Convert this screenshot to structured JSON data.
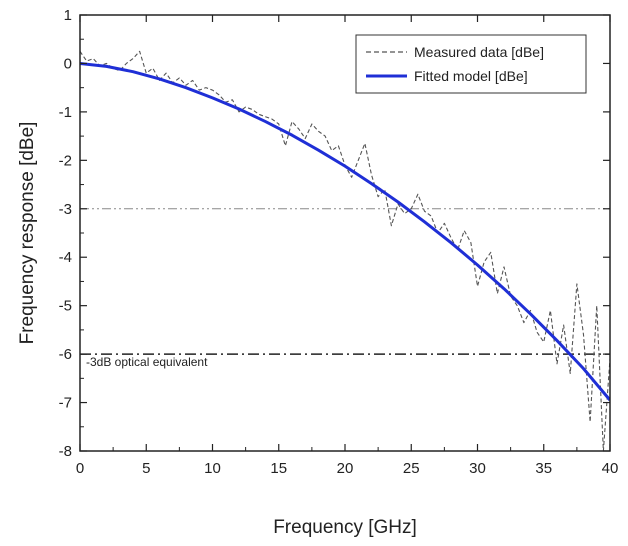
{
  "chart_data": {
    "type": "line",
    "title": "",
    "xlabel": "Frequency [GHz]",
    "ylabel": "Frequency response [dBe]",
    "xlim": [
      0,
      40
    ],
    "ylim": [
      -8,
      1
    ],
    "x_ticks": [
      0,
      5,
      10,
      15,
      20,
      25,
      30,
      35,
      40
    ],
    "y_ticks": [
      1,
      0,
      -1,
      -2,
      -3,
      -4,
      -5,
      -6,
      -7,
      -8
    ],
    "grid": false,
    "legend_position": "top-right",
    "series": [
      {
        "name": "Measured data [dBe]",
        "style": "dashed",
        "color": "#555555",
        "x": [
          0,
          0.5,
          1,
          1.5,
          2,
          2.5,
          3,
          3.5,
          4,
          4.5,
          5,
          5.5,
          6,
          6.5,
          7,
          7.5,
          8,
          8.5,
          9,
          9.5,
          10,
          10.5,
          11,
          11.5,
          12,
          12.5,
          13,
          13.5,
          14,
          14.5,
          15,
          15.5,
          16,
          16.5,
          17,
          17.5,
          18,
          18.5,
          19,
          19.5,
          20,
          20.5,
          21,
          21.5,
          22,
          22.5,
          23,
          23.5,
          24,
          24.5,
          25,
          25.5,
          26,
          26.5,
          27,
          27.5,
          28,
          28.5,
          29,
          29.5,
          30,
          30.5,
          31,
          31.5,
          32,
          32.5,
          33,
          33.5,
          34,
          34.5,
          35,
          35.5,
          36,
          36.5,
          37,
          37.5,
          38,
          38.5,
          39,
          39.5,
          40
        ],
        "y": [
          0.25,
          0.05,
          0.1,
          -0.05,
          0.0,
          -0.1,
          -0.15,
          0.0,
          0.1,
          0.25,
          -0.2,
          -0.1,
          -0.35,
          -0.2,
          -0.4,
          -0.3,
          -0.45,
          -0.35,
          -0.55,
          -0.5,
          -0.55,
          -0.65,
          -0.8,
          -0.75,
          -1.0,
          -0.9,
          -0.95,
          -1.05,
          -1.1,
          -1.15,
          -1.25,
          -1.7,
          -1.2,
          -1.35,
          -1.55,
          -1.25,
          -1.4,
          -1.5,
          -1.8,
          -1.7,
          -2.1,
          -2.35,
          -2.0,
          -1.65,
          -2.3,
          -2.75,
          -2.6,
          -3.35,
          -2.9,
          -3.1,
          -3.0,
          -2.7,
          -3.05,
          -3.15,
          -3.5,
          -3.3,
          -3.6,
          -3.85,
          -3.45,
          -3.7,
          -4.6,
          -4.1,
          -3.9,
          -4.75,
          -4.2,
          -4.8,
          -5.0,
          -5.35,
          -5.1,
          -5.55,
          -5.75,
          -5.1,
          -6.2,
          -5.4,
          -6.4,
          -4.55,
          -5.6,
          -7.4,
          -5.0,
          -8.0,
          -6.1
        ]
      },
      {
        "name": "Fitted model [dBe]",
        "style": "solid",
        "color": "#1f2fd6",
        "x": [
          0,
          2,
          4,
          6,
          8,
          10,
          12,
          14,
          16,
          18,
          20,
          22,
          24,
          26,
          28,
          30,
          32,
          34,
          36,
          38,
          40
        ],
        "y": [
          0.0,
          -0.06,
          -0.17,
          -0.32,
          -0.5,
          -0.71,
          -0.94,
          -1.2,
          -1.48,
          -1.79,
          -2.12,
          -2.48,
          -2.86,
          -3.27,
          -3.7,
          -4.16,
          -4.65,
          -5.17,
          -5.72,
          -6.3,
          -6.95
        ]
      }
    ],
    "reference_lines": [
      {
        "y": -3,
        "style": "dash-dot-dot",
        "color": "#888888"
      },
      {
        "y": -6,
        "style": "dash-dot",
        "color": "#222222",
        "label": "-3dB optical equivalent"
      }
    ]
  }
}
